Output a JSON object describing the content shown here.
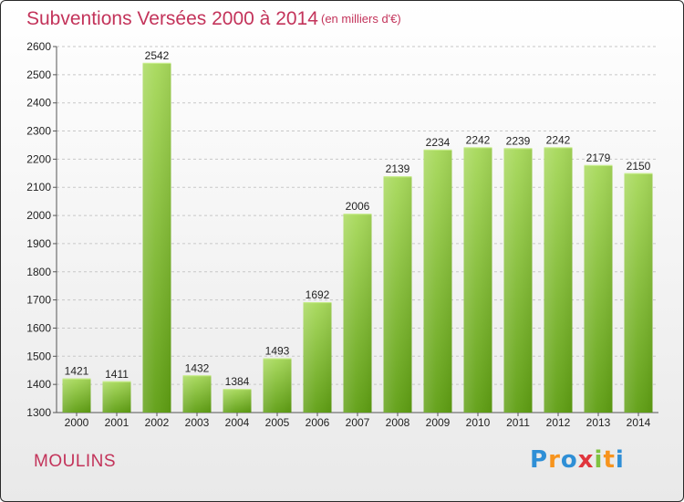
{
  "header": {
    "title": "Subventions Versées 2000 à 2014",
    "subtitle": "(en milliers d'€)"
  },
  "footer": {
    "commune": "MOULINS",
    "logo_text": "Proxiti",
    "logo_colors": [
      "#2f8fd6",
      "#f7941d",
      "#2f8fd6",
      "#e0353d",
      "#7fc241",
      "#f7941d",
      "#2f8fd6"
    ]
  },
  "colors": {
    "accent": "#c3335a",
    "bar_light": "#a7d95a",
    "bar_dark": "#5e9e12"
  },
  "chart_data": {
    "type": "bar",
    "title": "Subventions Versées 2000 à 2014",
    "subtitle": "(en milliers d'€)",
    "categories": [
      "2000",
      "2001",
      "2002",
      "2003",
      "2004",
      "2005",
      "2006",
      "2007",
      "2008",
      "2009",
      "2010",
      "2011",
      "2012",
      "2013",
      "2014"
    ],
    "values": [
      1421,
      1411,
      2542,
      1432,
      1384,
      1493,
      1692,
      2006,
      2139,
      2234,
      2242,
      2239,
      2242,
      2179,
      2150
    ],
    "value_labels": [
      "1421",
      "1411",
      "2542",
      "1432",
      "1384",
      "1493",
      "1692",
      "2006",
      "2139",
      "2234",
      "2242",
      "2239",
      "2242",
      "2179",
      "2150"
    ],
    "ylim": [
      1300,
      2600
    ],
    "yticks": [
      1300,
      1400,
      1500,
      1600,
      1700,
      1800,
      1900,
      2000,
      2100,
      2200,
      2300,
      2400,
      2500,
      2600
    ],
    "grid": true,
    "legend": "none"
  }
}
